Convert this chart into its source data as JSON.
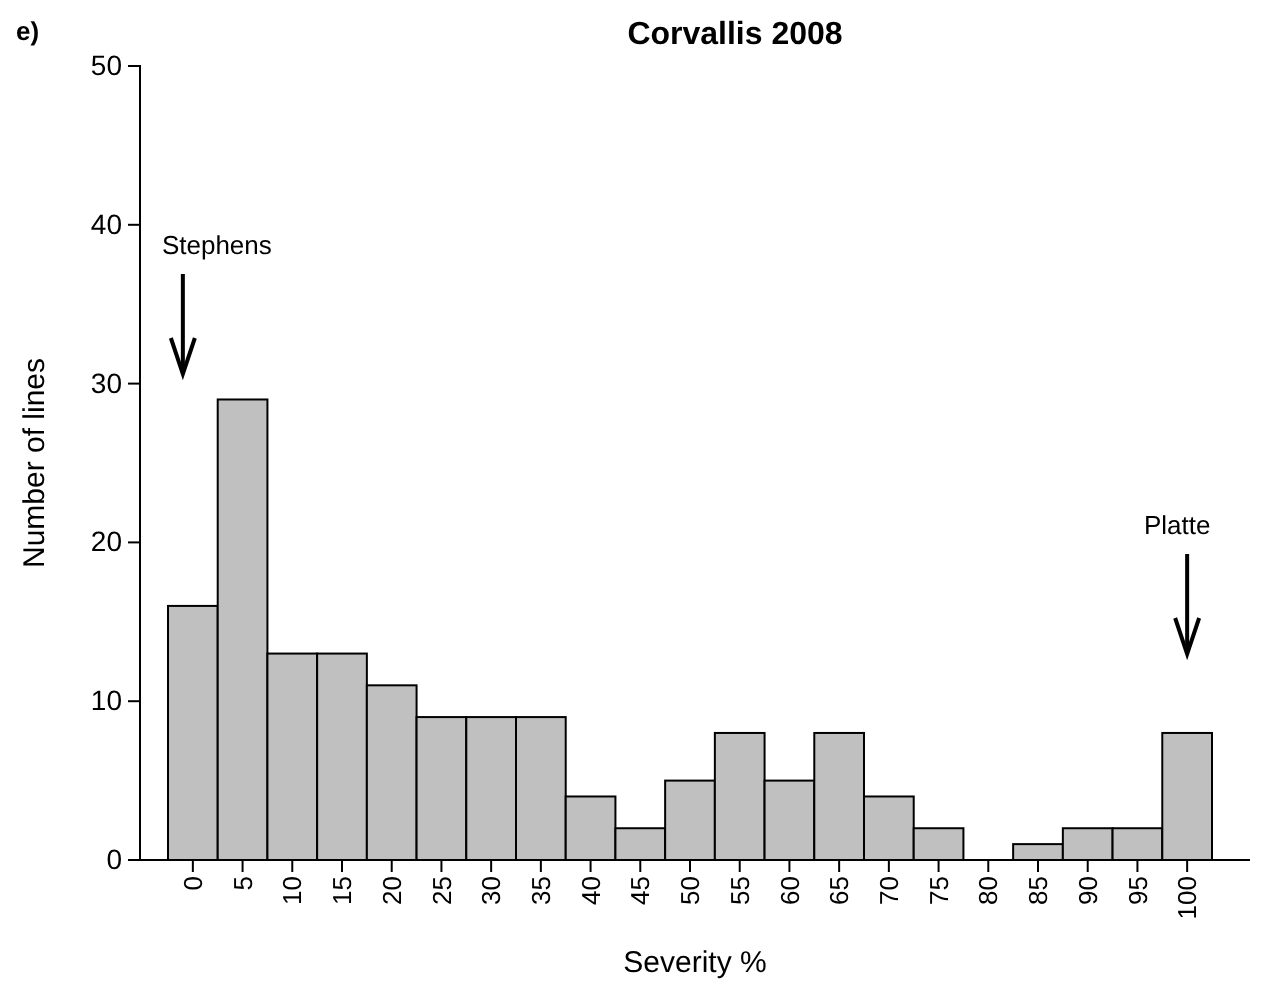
{
  "chart_data": {
    "type": "bar",
    "title": "Corvallis 2008",
    "xlabel": "Severity %",
    "ylabel": "Number of lines",
    "categories": [
      "0",
      "5",
      "10",
      "15",
      "20",
      "25",
      "30",
      "35",
      "40",
      "45",
      "50",
      "55",
      "60",
      "65",
      "70",
      "75",
      "80",
      "85",
      "90",
      "95",
      "100"
    ],
    "values": [
      16,
      29,
      13,
      13,
      11,
      9,
      9,
      9,
      4,
      2,
      5,
      8,
      5,
      8,
      4,
      2,
      0,
      1,
      2,
      2,
      8
    ],
    "color": "#c0c0c0",
    "ylim": [
      0,
      50
    ],
    "yticks": [
      0,
      10,
      20,
      30,
      40,
      50
    ],
    "grid": false,
    "annotations": [
      "e)",
      "Stephens",
      "Platte"
    ]
  }
}
